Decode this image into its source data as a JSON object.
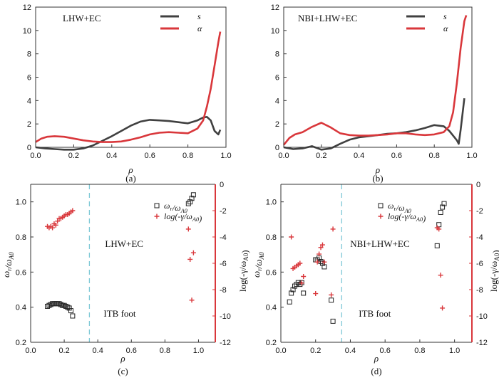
{
  "chart_data": [
    {
      "type": "line",
      "caption": "(a)",
      "annotation": "LHW+EC",
      "xlabel": "ρ",
      "xlim": [
        0.0,
        1.0
      ],
      "ylim": [
        0,
        12
      ],
      "xticks": [
        "0.0",
        "0.2",
        "0.4",
        "0.6",
        "0.8",
        "1.0"
      ],
      "yticks": [
        "0",
        "2",
        "4",
        "6",
        "8",
        "10",
        "12"
      ],
      "legend_position": "top-right",
      "series": [
        {
          "name": "s",
          "color": "#404040",
          "x": [
            0.0,
            0.05,
            0.1,
            0.15,
            0.2,
            0.25,
            0.3,
            0.35,
            0.4,
            0.45,
            0.5,
            0.55,
            0.6,
            0.65,
            0.7,
            0.75,
            0.8,
            0.85,
            0.88,
            0.9,
            0.92,
            0.94,
            0.96,
            0.97
          ],
          "y": [
            0.0,
            -0.1,
            -0.15,
            -0.2,
            -0.2,
            -0.1,
            0.15,
            0.55,
            0.95,
            1.4,
            1.85,
            2.2,
            2.35,
            2.3,
            2.25,
            2.15,
            2.05,
            2.3,
            2.55,
            2.6,
            2.3,
            1.4,
            1.1,
            1.5
          ]
        },
        {
          "name": "α",
          "color": "#d9373b",
          "x": [
            0.0,
            0.03,
            0.06,
            0.1,
            0.15,
            0.2,
            0.25,
            0.3,
            0.35,
            0.4,
            0.45,
            0.5,
            0.55,
            0.6,
            0.65,
            0.7,
            0.75,
            0.8,
            0.85,
            0.88,
            0.9,
            0.92,
            0.94,
            0.96,
            0.97
          ],
          "y": [
            0.45,
            0.75,
            0.9,
            0.95,
            0.9,
            0.75,
            0.6,
            0.5,
            0.45,
            0.45,
            0.5,
            0.65,
            0.85,
            1.1,
            1.25,
            1.3,
            1.25,
            1.2,
            1.6,
            2.3,
            3.5,
            5.0,
            7.0,
            9.0,
            9.9
          ]
        }
      ]
    },
    {
      "type": "line",
      "caption": "(b)",
      "annotation": "NBI+LHW+EC",
      "xlabel": "ρ",
      "xlim": [
        0.0,
        1.0
      ],
      "ylim": [
        0,
        12
      ],
      "xticks": [
        "0.0",
        "0.2",
        "0.4",
        "0.6",
        "0.8",
        "1.0"
      ],
      "yticks": [
        "0",
        "2",
        "4",
        "6",
        "8",
        "10",
        "12"
      ],
      "legend_position": "top-right",
      "series": [
        {
          "name": "s",
          "color": "#404040",
          "x": [
            0.0,
            0.05,
            0.1,
            0.15,
            0.2,
            0.25,
            0.3,
            0.35,
            0.4,
            0.45,
            0.5,
            0.55,
            0.6,
            0.65,
            0.7,
            0.75,
            0.8,
            0.85,
            0.88,
            0.9,
            0.92,
            0.93,
            0.94,
            0.96
          ],
          "y": [
            0.0,
            -0.15,
            -0.1,
            0.1,
            -0.2,
            -0.1,
            0.3,
            0.65,
            0.85,
            0.95,
            1.05,
            1.15,
            1.2,
            1.3,
            1.45,
            1.65,
            1.9,
            1.8,
            1.4,
            1.0,
            0.6,
            0.3,
            1.5,
            4.2
          ]
        },
        {
          "name": "α",
          "color": "#d9373b",
          "x": [
            0.0,
            0.03,
            0.06,
            0.1,
            0.15,
            0.2,
            0.25,
            0.3,
            0.35,
            0.4,
            0.45,
            0.5,
            0.55,
            0.6,
            0.65,
            0.7,
            0.75,
            0.8,
            0.85,
            0.88,
            0.9,
            0.92,
            0.94,
            0.96,
            0.97
          ],
          "y": [
            0.2,
            0.8,
            1.1,
            1.3,
            1.75,
            2.1,
            1.7,
            1.2,
            1.05,
            1.0,
            1.0,
            1.05,
            1.1,
            1.2,
            1.2,
            1.1,
            1.05,
            1.1,
            1.3,
            1.8,
            3.0,
            5.5,
            8.5,
            10.8,
            11.3
          ]
        }
      ]
    },
    {
      "type": "scatter",
      "caption": "(c)",
      "annotation": "LHW+EC",
      "annotation2": "ITB foot",
      "xlabel": "ρ",
      "ylabel_left": "ω_r/ω_A0",
      "ylabel_right": "log(-γ/ω_A0)",
      "xlim": [
        0.0,
        1.1
      ],
      "ylim_left": [
        0.2,
        1.1
      ],
      "ylim_right": [
        -12,
        0
      ],
      "xticks": [
        "0.0",
        "0.2",
        "0.4",
        "0.6",
        "0.8",
        "1.0"
      ],
      "yticks_left": [
        "0.2",
        "0.4",
        "0.6",
        "0.8",
        "1.0"
      ],
      "yticks_right": [
        "0",
        "-2",
        "-4",
        "-6",
        "-8",
        "-10",
        "-12"
      ],
      "itb_foot_rho": 0.35,
      "legend_position": "top-right",
      "series": [
        {
          "name": "ω_r/ω_A0",
          "marker": "square",
          "color": "#222222",
          "axis": "left",
          "x": [
            0.1,
            0.11,
            0.12,
            0.13,
            0.14,
            0.15,
            0.16,
            0.17,
            0.18,
            0.19,
            0.2,
            0.21,
            0.22,
            0.23,
            0.24,
            0.25,
            0.94,
            0.95,
            0.96,
            0.97
          ],
          "y": [
            0.405,
            0.41,
            0.415,
            0.42,
            0.42,
            0.42,
            0.42,
            0.42,
            0.415,
            0.41,
            0.41,
            0.405,
            0.4,
            0.395,
            0.38,
            0.35,
            0.99,
            1.0,
            1.02,
            1.04
          ]
        },
        {
          "name": "log(-γ/ω_A0)",
          "marker": "plus",
          "color": "#d9373b",
          "axis": "right",
          "x": [
            0.1,
            0.11,
            0.12,
            0.13,
            0.14,
            0.15,
            0.16,
            0.17,
            0.18,
            0.19,
            0.2,
            0.21,
            0.22,
            0.23,
            0.24,
            0.25,
            0.94,
            0.95,
            0.97,
            0.96
          ],
          "y": [
            -3.2,
            -3.3,
            -3.2,
            -3.3,
            -3.0,
            -3.1,
            -2.8,
            -2.6,
            -2.6,
            -2.5,
            -2.4,
            -2.3,
            -2.3,
            -2.2,
            -2.1,
            -2.0,
            -3.4,
            -5.7,
            -5.2,
            -8.8
          ]
        }
      ]
    },
    {
      "type": "scatter",
      "caption": "(d)",
      "annotation": "NBI+LHW+EC",
      "annotation2": "ITB foot",
      "xlabel": "ρ",
      "ylabel_left": "ω_r/ω_A0",
      "ylabel_right": "log(-γ/ω_A0)",
      "xlim": [
        0.0,
        1.1
      ],
      "ylim_left": [
        0.2,
        1.1
      ],
      "ylim_right": [
        -12,
        0
      ],
      "xticks": [
        "0.0",
        "0.2",
        "0.4",
        "0.6",
        "0.8",
        "1.0"
      ],
      "yticks_left": [
        "0.2",
        "0.4",
        "0.6",
        "0.8",
        "1.0"
      ],
      "yticks_right": [
        "0",
        "-2",
        "-4",
        "-6",
        "-8",
        "-10",
        "-12"
      ],
      "itb_foot_rho": 0.35,
      "legend_position": "top-right",
      "series": [
        {
          "name": "ω_r/ω_A0",
          "marker": "square",
          "color": "#222222",
          "axis": "left",
          "x": [
            0.05,
            0.06,
            0.07,
            0.08,
            0.09,
            0.1,
            0.11,
            0.12,
            0.13,
            0.2,
            0.21,
            0.22,
            0.23,
            0.24,
            0.25,
            0.29,
            0.3,
            0.9,
            0.91,
            0.92,
            0.93,
            0.94
          ],
          "y": [
            0.43,
            0.48,
            0.5,
            0.52,
            0.53,
            0.54,
            0.53,
            0.54,
            0.48,
            0.67,
            0.67,
            0.68,
            0.66,
            0.65,
            0.63,
            0.44,
            0.32,
            0.75,
            0.87,
            0.94,
            0.97,
            0.99
          ]
        },
        {
          "name": "log(-γ/ω_A0)",
          "marker": "plus",
          "color": "#d9373b",
          "axis": "right",
          "x": [
            0.06,
            0.07,
            0.08,
            0.09,
            0.1,
            0.11,
            0.12,
            0.13,
            0.2,
            0.21,
            0.22,
            0.23,
            0.24,
            0.25,
            0.29,
            0.3,
            0.9,
            0.91,
            0.92,
            0.93
          ],
          "y": [
            -4.0,
            -6.4,
            -6.3,
            -6.2,
            -6.1,
            -6.0,
            -7.5,
            -7.0,
            -8.3,
            -5.9,
            -5.3,
            -4.8,
            -4.6,
            -5.9,
            -8.4,
            -3.4,
            -3.3,
            -3.4,
            -6.9,
            -9.4
          ]
        }
      ]
    }
  ]
}
